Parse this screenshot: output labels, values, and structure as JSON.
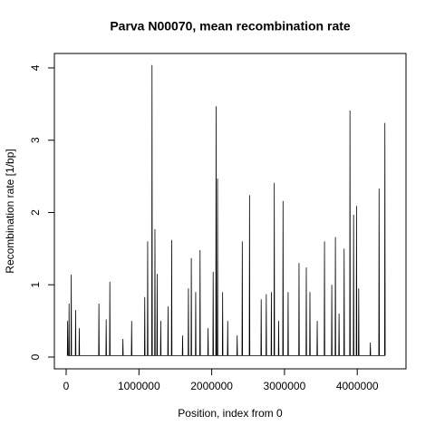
{
  "chart_data": {
    "type": "line",
    "title": "Parva N00070, mean recombination rate",
    "xlabel": "Position, index from 0",
    "ylabel": "Recombination rate [1/bp]",
    "color": "#000000",
    "xlim": [
      -162000,
      4670000
    ],
    "ylim": [
      -0.163,
      4.2
    ],
    "xticks": [
      0,
      1000000,
      2000000,
      3000000,
      4000000
    ],
    "yticks": [
      0,
      1,
      2,
      3,
      4
    ],
    "x": [
      16000,
      20000,
      24000,
      36000,
      40000,
      44000,
      66000,
      70000,
      74000,
      126000,
      130000,
      134000,
      176000,
      180000,
      184000,
      446000,
      450000,
      454000,
      546000,
      550000,
      554000,
      596000,
      600000,
      604000,
      776000,
      780000,
      784000,
      896000,
      900000,
      904000,
      1076000,
      1080000,
      1084000,
      1116000,
      1120000,
      1124000,
      1176000,
      1180000,
      1184000,
      1216000,
      1220000,
      1224000,
      1246000,
      1250000,
      1254000,
      1296000,
      1300000,
      1304000,
      1396000,
      1400000,
      1404000,
      1446000,
      1450000,
      1454000,
      1596000,
      1600000,
      1604000,
      1676000,
      1680000,
      1684000,
      1716000,
      1720000,
      1724000,
      1776000,
      1780000,
      1784000,
      1836000,
      1840000,
      1844000,
      1946000,
      1950000,
      1954000,
      2016000,
      2020000,
      2024000,
      2056000,
      2060000,
      2064000,
      2076000,
      2080000,
      2084000,
      2146000,
      2150000,
      2154000,
      2216000,
      2220000,
      2224000,
      2346000,
      2350000,
      2354000,
      2416000,
      2420000,
      2424000,
      2516000,
      2520000,
      2524000,
      2676000,
      2680000,
      2684000,
      2746000,
      2750000,
      2754000,
      2816000,
      2820000,
      2824000,
      2856000,
      2860000,
      2864000,
      2916000,
      2920000,
      2924000,
      2976000,
      2980000,
      2984000,
      3046000,
      3050000,
      3054000,
      3196000,
      3200000,
      3204000,
      3296000,
      3300000,
      3304000,
      3346000,
      3350000,
      3354000,
      3446000,
      3450000,
      3454000,
      3546000,
      3550000,
      3554000,
      3646000,
      3650000,
      3654000,
      3696000,
      3700000,
      3704000,
      3746000,
      3750000,
      3754000,
      3816000,
      3820000,
      3824000,
      3896000,
      3900000,
      3904000,
      3946000,
      3950000,
      3954000,
      3986000,
      3990000,
      3994000,
      4016000,
      4020000,
      4024000,
      4176000,
      4180000,
      4184000,
      4296000,
      4300000,
      4304000,
      4376000,
      4380000,
      4384000
    ],
    "values": [
      0.02,
      0.5,
      0.02,
      0.02,
      0.74,
      0.02,
      0.02,
      1.14,
      0.02,
      0.02,
      0.65,
      0.02,
      0.02,
      0.4,
      0.02,
      0.02,
      0.74,
      0.02,
      0.02,
      0.52,
      0.02,
      0.02,
      1.04,
      0.02,
      0.02,
      0.25,
      0.02,
      0.02,
      0.5,
      0.02,
      0.02,
      0.83,
      0.02,
      0.02,
      1.6,
      0.02,
      0.02,
      4.04,
      0.02,
      0.02,
      1.77,
      0.02,
      0.02,
      1.15,
      0.02,
      0.02,
      0.5,
      0.02,
      0.02,
      0.7,
      0.02,
      0.02,
      1.62,
      0.02,
      0.02,
      0.3,
      0.02,
      0.02,
      0.95,
      0.02,
      0.02,
      1.37,
      0.02,
      0.02,
      0.9,
      0.02,
      0.02,
      1.48,
      0.02,
      0.02,
      0.4,
      0.02,
      0.02,
      1.18,
      0.02,
      0.02,
      3.47,
      0.02,
      0.02,
      2.47,
      0.02,
      0.02,
      0.9,
      0.02,
      0.02,
      0.5,
      0.02,
      0.02,
      0.3,
      0.02,
      0.02,
      1.6,
      0.02,
      0.02,
      2.24,
      0.02,
      0.02,
      0.8,
      0.02,
      0.02,
      0.87,
      0.02,
      0.02,
      0.9,
      0.02,
      0.02,
      2.41,
      0.02,
      0.02,
      0.5,
      0.02,
      0.02,
      2.16,
      0.02,
      0.02,
      0.9,
      0.02,
      0.02,
      1.3,
      0.02,
      0.02,
      1.24,
      0.02,
      0.02,
      0.9,
      0.02,
      0.02,
      0.5,
      0.02,
      0.02,
      1.6,
      0.02,
      0.02,
      1.0,
      0.02,
      0.02,
      1.66,
      0.02,
      0.02,
      0.6,
      0.02,
      0.02,
      1.5,
      0.02,
      0.02,
      3.41,
      0.02,
      0.02,
      1.97,
      0.02,
      0.02,
      2.09,
      0.02,
      0.02,
      0.95,
      0.02,
      0.02,
      0.2,
      0.02,
      0.02,
      2.33,
      0.02,
      0.02,
      3.24,
      0.02
    ]
  }
}
